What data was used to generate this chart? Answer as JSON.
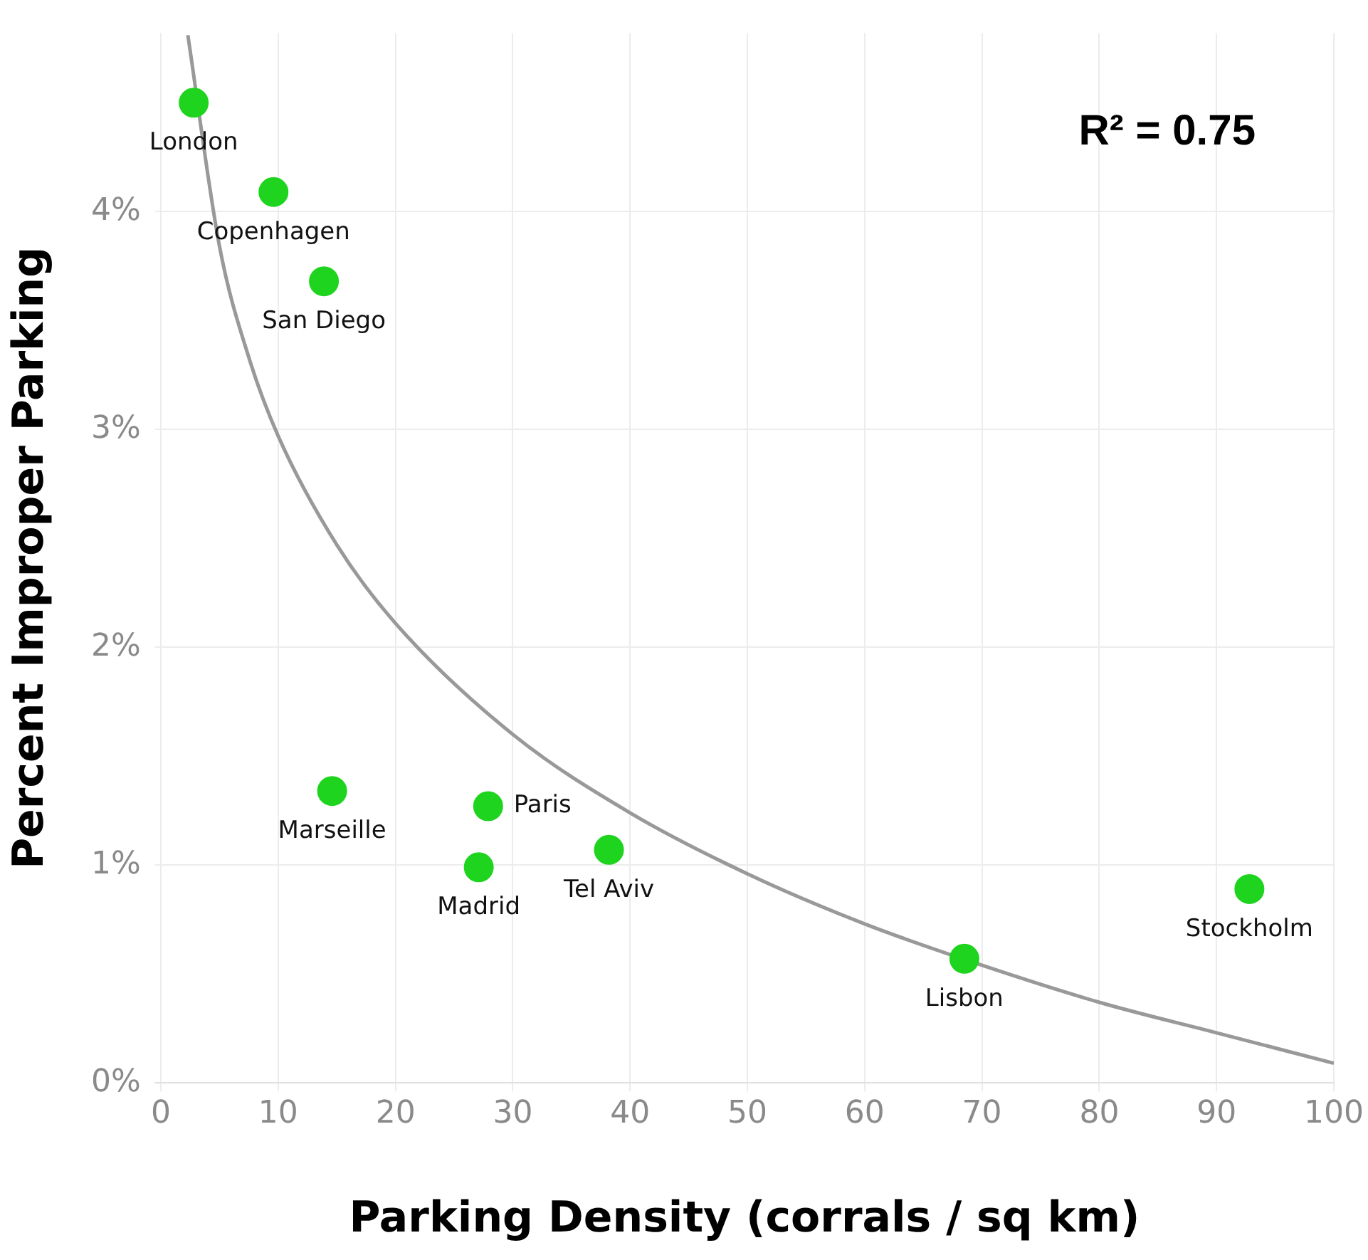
{
  "chart_data": {
    "type": "scatter",
    "xlabel": "Parking Density (corrals / sq km)",
    "ylabel": "Percent Improper Parking",
    "xlim": [
      -0.5,
      100
    ],
    "xticks": [
      0,
      10,
      20,
      30,
      40,
      50,
      60,
      70,
      80,
      90,
      100
    ],
    "ylim": [
      0,
      4.82
    ],
    "yticks": [
      {
        "value": 0,
        "label": "0%"
      },
      {
        "value": 1,
        "label": "1%"
      },
      {
        "value": 2,
        "label": "2%"
      },
      {
        "value": 3,
        "label": "3%"
      },
      {
        "value": 4,
        "label": "4%"
      }
    ],
    "grid": true,
    "legend": false,
    "marker": "circle",
    "series": [
      {
        "color": "#1ed41e",
        "x": [
          2.8,
          9.6,
          13.9,
          14.6,
          27.9,
          27.1,
          38.2,
          68.5,
          92.8
        ],
        "values": [
          4.5,
          4.09,
          3.68,
          1.34,
          1.27,
          0.99,
          1.07,
          0.57,
          0.89
        ]
      },
      {
        "type": "line",
        "color": "#999999",
        "line_style": "solid",
        "marker": "none",
        "x": [
          2.3,
          5,
          7.5,
          10,
          15,
          20,
          30,
          40,
          50,
          60,
          70,
          80,
          90,
          100
        ],
        "values": [
          4.81,
          3.84,
          3.33,
          2.97,
          2.47,
          2.11,
          1.6,
          1.24,
          0.96,
          0.73,
          0.54,
          0.37,
          0.23,
          0.09
        ]
      }
    ],
    "annotations": [
      "R² = 0.75",
      {
        "text": "London",
        "x": 2.8,
        "y": 4.5
      },
      {
        "text": "Copenhagen",
        "x": 9.6,
        "y": 4.09
      },
      {
        "text": "San Diego",
        "x": 13.9,
        "y": 3.68
      },
      {
        "text": "Marseille",
        "x": 14.6,
        "y": 1.34
      },
      {
        "text": "Paris",
        "x": 27.9,
        "y": 1.27
      },
      {
        "text": "Madrid",
        "x": 27.1,
        "y": 0.99
      },
      {
        "text": "Tel Aviv",
        "x": 38.2,
        "y": 1.07
      },
      {
        "text": "Lisbon",
        "x": 68.5,
        "y": 0.57
      },
      {
        "text": "Stockholm",
        "x": 92.8,
        "y": 0.89
      }
    ]
  }
}
